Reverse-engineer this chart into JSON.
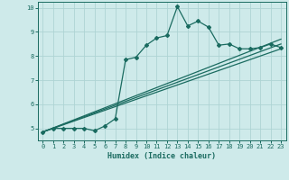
{
  "xlabel": "Humidex (Indice chaleur)",
  "bg_color": "#ceeaea",
  "line_color": "#1a6b60",
  "grid_color": "#aed4d4",
  "xlim": [
    -0.5,
    23.5
  ],
  "ylim": [
    4.5,
    10.25
  ],
  "yticks": [
    5,
    6,
    7,
    8,
    9,
    10
  ],
  "xticks": [
    0,
    1,
    2,
    3,
    4,
    5,
    6,
    7,
    8,
    9,
    10,
    11,
    12,
    13,
    14,
    15,
    16,
    17,
    18,
    19,
    20,
    21,
    22,
    23
  ],
  "line1_x": [
    0,
    1,
    2,
    3,
    4,
    5,
    6,
    7,
    8,
    9,
    10,
    11,
    12,
    13,
    14,
    15,
    16,
    17,
    18,
    19,
    20,
    21,
    22,
    23
  ],
  "line1_y": [
    4.85,
    5.0,
    5.0,
    5.0,
    5.0,
    4.9,
    5.1,
    5.4,
    7.85,
    7.95,
    8.45,
    8.75,
    8.85,
    10.05,
    9.25,
    9.45,
    9.2,
    8.45,
    8.5,
    8.3,
    8.3,
    8.35,
    8.5,
    8.35
  ],
  "line2_x": [
    0,
    23
  ],
  "line2_y": [
    4.85,
    8.5
  ],
  "line3_x": [
    0,
    23
  ],
  "line3_y": [
    4.85,
    8.7
  ],
  "line4_x": [
    0,
    23
  ],
  "line4_y": [
    4.85,
    8.3
  ]
}
